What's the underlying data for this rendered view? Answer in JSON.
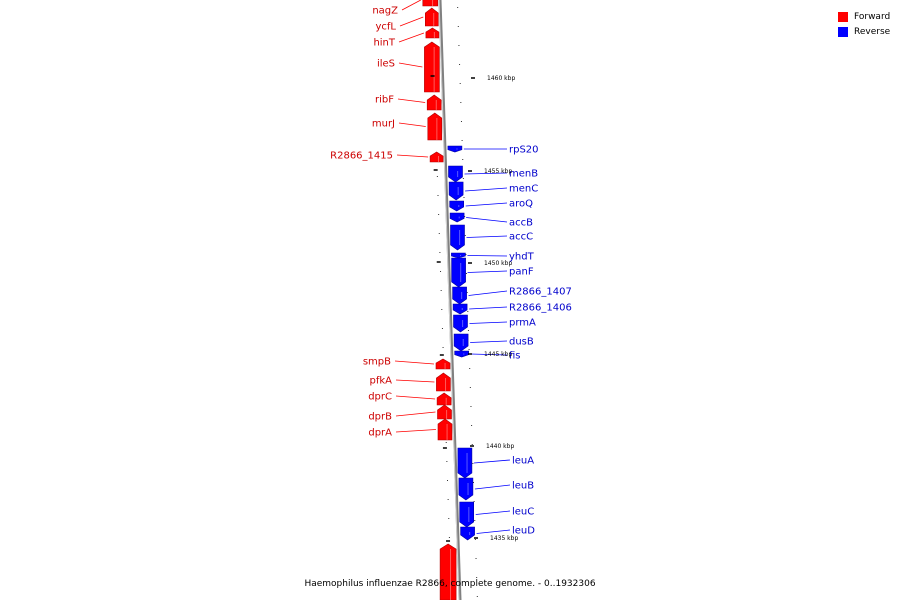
{
  "caption": "Haemophilus influenzae R2866, complete genome. - 0..1932306",
  "legend": [
    {
      "label": "Forward",
      "color": "#ff0000"
    },
    {
      "label": "Reverse",
      "color": "#0000ff"
    }
  ],
  "colors": {
    "forward": "#ff0000",
    "reverse": "#0000ff",
    "axis": "#a0a0a0"
  },
  "axis_ticks": [
    {
      "label": "1460 kbp"
    },
    {
      "label": "1455 kbp"
    },
    {
      "label": "1450 kbp"
    },
    {
      "label": "1445 kbp"
    },
    {
      "label": "1440 kbp"
    },
    {
      "label": "1435 kbp"
    }
  ],
  "genes": [
    {
      "name": "nagZ",
      "strand": "forward"
    },
    {
      "name": "ycfL",
      "strand": "forward"
    },
    {
      "name": "hinT",
      "strand": "forward"
    },
    {
      "name": "ileS",
      "strand": "forward"
    },
    {
      "name": "ribF",
      "strand": "forward"
    },
    {
      "name": "murJ",
      "strand": "forward"
    },
    {
      "name": "R2866_1415",
      "strand": "forward"
    },
    {
      "name": "rpS20",
      "strand": "reverse"
    },
    {
      "name": "menB",
      "strand": "reverse"
    },
    {
      "name": "menC",
      "strand": "reverse"
    },
    {
      "name": "aroQ",
      "strand": "reverse"
    },
    {
      "name": "accB",
      "strand": "reverse"
    },
    {
      "name": "accC",
      "strand": "reverse"
    },
    {
      "name": "yhdT",
      "strand": "reverse"
    },
    {
      "name": "panF",
      "strand": "reverse"
    },
    {
      "name": "R2866_1407",
      "strand": "reverse"
    },
    {
      "name": "R2866_1406",
      "strand": "reverse"
    },
    {
      "name": "prmA",
      "strand": "reverse"
    },
    {
      "name": "dusB",
      "strand": "reverse"
    },
    {
      "name": "fis",
      "strand": "reverse"
    },
    {
      "name": "smpB",
      "strand": "forward"
    },
    {
      "name": "pfkA",
      "strand": "forward"
    },
    {
      "name": "dprC",
      "strand": "forward"
    },
    {
      "name": "dprB",
      "strand": "forward"
    },
    {
      "name": "dprA",
      "strand": "forward"
    },
    {
      "name": "leuA",
      "strand": "reverse"
    },
    {
      "name": "leuB",
      "strand": "reverse"
    },
    {
      "name": "leuC",
      "strand": "reverse"
    },
    {
      "name": "leuD",
      "strand": "reverse"
    }
  ]
}
